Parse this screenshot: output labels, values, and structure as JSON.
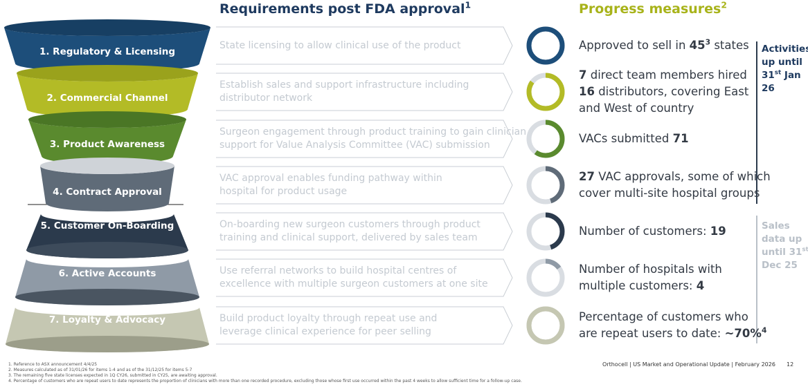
{
  "requirements_title": {
    "text": "Requirements post FDA approval",
    "sup": "1"
  },
  "progress_title": {
    "text": "Progress measures",
    "sup": "2"
  },
  "stages": [
    {
      "label": "1. Regulatory & Licensing",
      "color": "#1d4e7a",
      "cap_color": "#173f63",
      "ring_color": "#1d4e7a",
      "progress": 1.0,
      "requirement": [
        "State licensing to allow clinical use of the product"
      ],
      "measure": [
        [
          {
            "text": "Approved to sell in "
          },
          {
            "text": "45",
            "bold": true
          },
          {
            "text": "3",
            "bold": true,
            "sup": true
          },
          {
            "text": " states"
          }
        ]
      ]
    },
    {
      "label": "2. Commercial Channel",
      "color": "#b3bb26",
      "cap_color": "#9aa21c",
      "ring_color": "#b3bb26",
      "progress": 0.85,
      "requirement": [
        "Establish sales and support infrastructure including",
        "distributor network"
      ],
      "measure": [
        [
          {
            "text": "7",
            "bold": true
          },
          {
            "text": " direct team members hired"
          }
        ],
        [
          {
            "text": "16",
            "bold": true
          },
          {
            "text": " distributors, covering East"
          }
        ],
        [
          {
            "text": "and West of country"
          }
        ]
      ]
    },
    {
      "label": "3. Product Awareness",
      "color": "#5a8a2e",
      "cap_color": "#4a7625",
      "ring_color": "#5a8a2e",
      "progress": 0.6,
      "requirement": [
        "Surgeon engagement through product training to gain clinician",
        "support for Value Analysis Committee (VAC) submission"
      ],
      "measure": [
        [
          {
            "text": "VACs submitted "
          },
          {
            "text": "71",
            "bold": true
          }
        ]
      ]
    },
    {
      "label": "4. Contract Approval",
      "color": "#5f6b78",
      "cap_color": "#cfd3d8",
      "ring_color": "#5f6b78",
      "progress": 0.45,
      "requirement": [
        "VAC approval enables funding pathway within",
        "hospital for product usage"
      ],
      "measure": [
        [
          {
            "text": "27",
            "bold": true
          },
          {
            "text": " VAC approvals, some of which"
          }
        ],
        [
          {
            "text": "cover multi-site hospital groups"
          }
        ]
      ]
    },
    {
      "label": "5. Customer On-Boarding",
      "color": "#2b3a4c",
      "cap_color": "#3d4b5b",
      "ring_color": "#2b3a4c",
      "progress": 0.45,
      "requirement": [
        "On-boarding new surgeon customers through product",
        "training and clinical support, delivered by sales team"
      ],
      "measure": [
        [
          {
            "text": "Number of customers: "
          },
          {
            "text": "19",
            "bold": true
          }
        ]
      ]
    },
    {
      "label": "6. Active Accounts",
      "color": "#8f9aa6",
      "cap_color": "#4a5561",
      "ring_color": "#8f9aa6",
      "progress": 0.15,
      "requirement": [
        "Use referral networks to build hospital centres of",
        "excellence with multiple surgeon customers at one site"
      ],
      "measure": [
        [
          {
            "text": "Number of hospitals with"
          }
        ],
        [
          {
            "text": "multiple customers: "
          },
          {
            "text": "4",
            "bold": true
          }
        ]
      ]
    },
    {
      "label": "7. Loyalty & Advocacy",
      "color": "#c5c7b2",
      "cap_color": "#9c9e8a",
      "ring_color": "#c5c7b2",
      "progress": 1.0,
      "requirement": [
        "Build product loyalty through repeat use and",
        "leverage clinical experience for peer selling"
      ],
      "measure": [
        [
          {
            "text": "Percentage of customers who"
          }
        ],
        [
          {
            "text": "are repeat users to date: "
          },
          {
            "text": "~70%",
            "bold": true
          },
          {
            "text": "4",
            "bold": true,
            "sup": true
          }
        ]
      ]
    }
  ],
  "side_notes": [
    {
      "lines": [
        [
          {
            "text": "Activities"
          }
        ],
        [
          {
            "text": "up until"
          }
        ],
        [
          {
            "text": "31"
          },
          {
            "text": "st",
            "sup": true
          },
          {
            "text": " Jan"
          }
        ],
        [
          {
            "text": "26"
          }
        ]
      ]
    },
    {
      "lines": [
        [
          {
            "text": "Sales"
          }
        ],
        [
          {
            "text": "data up"
          }
        ],
        [
          {
            "text": "until 31"
          },
          {
            "text": "st",
            "sup": true
          }
        ],
        [
          {
            "text": "Dec 25"
          }
        ]
      ]
    }
  ],
  "footnotes": [
    "1. Reference to ASX announcement 4/4/25",
    "2. Measures calculated as of 31/01/26 for items 1-4 and as of the 31/12/25 for items 5-7",
    "3. The remaining five state licenses expected in 1Q CY26, submitted in CY25, are awaiting approval.",
    "4. Percentage of customers who are repeat users to date represents the proportion of clinicians with more than one recorded procedure, excluding those whose first use occurred within the past 4 weeks to allow sufficient time for a follow-up case."
  ],
  "footer": {
    "text": "Orthocell | US Market and Operational Update | February 2026",
    "page": "12"
  }
}
